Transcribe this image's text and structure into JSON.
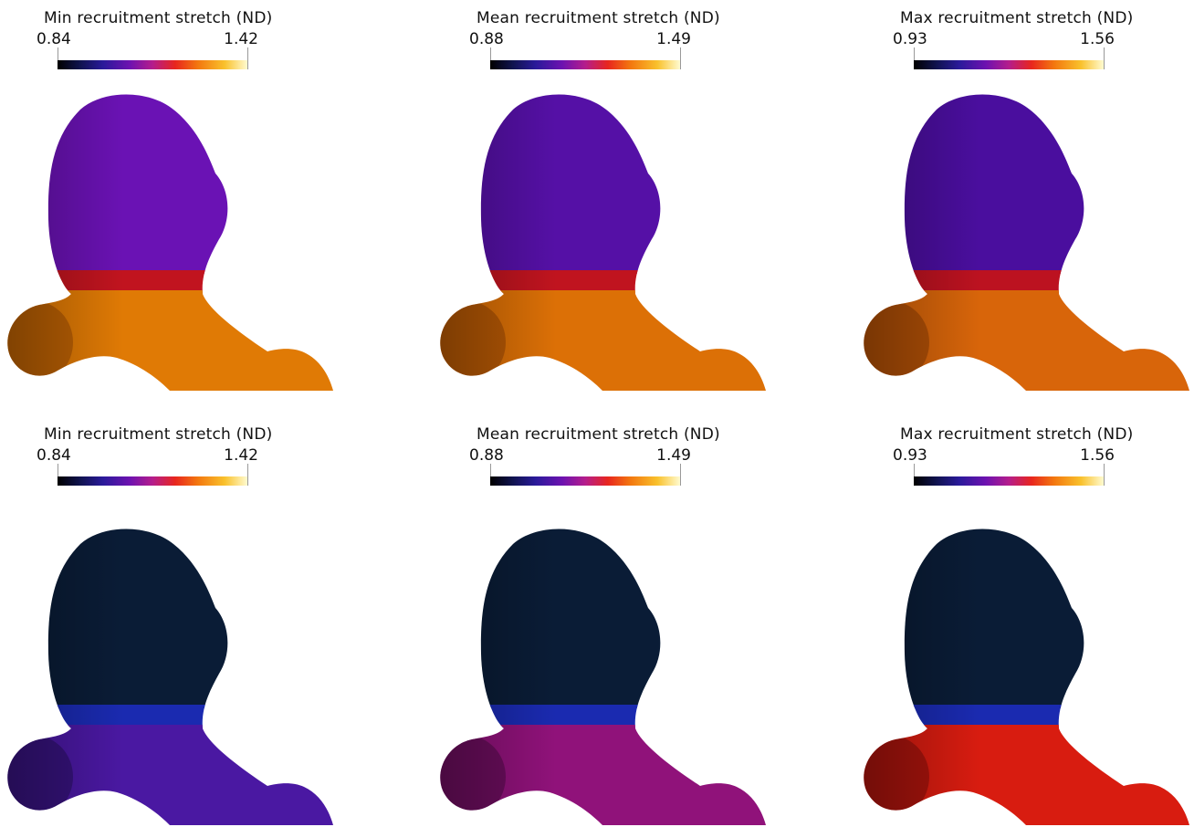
{
  "panels": [
    {
      "title": "Min recruitment stretch (ND)",
      "min": "0.84",
      "max": "1.42",
      "colors": {
        "dome": "#6a12b4",
        "band": "#c1141f",
        "base": "#e07a05",
        "shade": "#8a3f02"
      }
    },
    {
      "title": "Mean recruitment stretch (ND)",
      "min": "0.88",
      "max": "1.49",
      "colors": {
        "dome": "#5510a6",
        "band": "#c0141f",
        "base": "#dc7006",
        "shade": "#833a02"
      }
    },
    {
      "title": "Max recruitment stretch (ND)",
      "min": "0.93",
      "max": "1.56",
      "colors": {
        "dome": "#4a0e9e",
        "band": "#bc1220",
        "base": "#d8650a",
        "shade": "#7d3203"
      }
    },
    {
      "title": "Min recruitment stretch (ND)",
      "min": "0.84",
      "max": "1.42",
      "colors": {
        "dome": "#0a1c36",
        "band": "#1a2ab0",
        "base": "#4a18a2",
        "shade": "#1c0b4a"
      }
    },
    {
      "title": "Mean recruitment stretch (ND)",
      "min": "0.88",
      "max": "1.49",
      "colors": {
        "dome": "#0a1c36",
        "band": "#1a2ab0",
        "base": "#90127a",
        "shade": "#3c0838"
      }
    },
    {
      "title": "Max recruitment stretch (ND)",
      "min": "0.93",
      "max": "1.56",
      "colors": {
        "dome": "#0a1c36",
        "band": "#1a2ab0",
        "base": "#d81c10",
        "shade": "#6a0808"
      }
    }
  ]
}
